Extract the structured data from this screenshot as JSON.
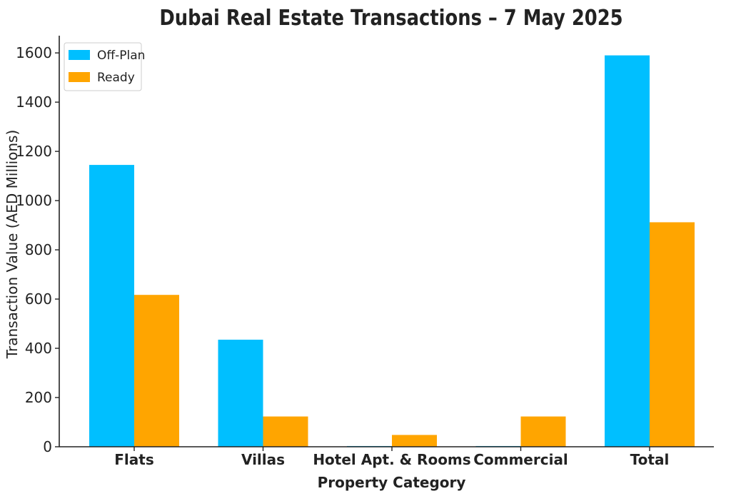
{
  "chart_data": {
    "type": "bar",
    "title": "Dubai Real Estate Transactions – 7 May 2025",
    "xlabel": "Property Category",
    "ylabel": "Transaction Value (AED Millions)",
    "categories": [
      "Flats",
      "Villas",
      "Hotel Apt. & Rooms",
      "Commercial",
      "Total"
    ],
    "series": [
      {
        "name": "Off-Plan",
        "values": [
          1145,
          435,
          3,
          3,
          1590
        ]
      },
      {
        "name": "Ready",
        "values": [
          617,
          123,
          48,
          123,
          912
        ]
      }
    ],
    "ylim": [
      0,
      1670
    ],
    "yticks": [
      0,
      200,
      400,
      600,
      800,
      1000,
      1200,
      1400,
      1600
    ],
    "colors": [
      "#00bfff",
      "#ffa500"
    ],
    "legend_placement": "top-left",
    "grid": false
  }
}
